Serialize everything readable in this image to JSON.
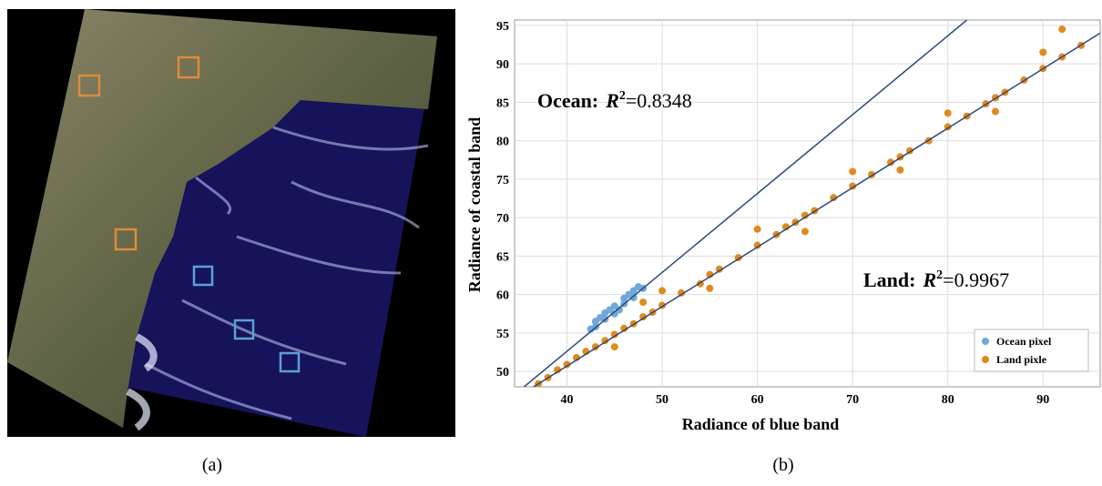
{
  "captions": [
    "(a)",
    "(b)"
  ],
  "chart_data": {
    "type": "scatter",
    "x_label": "Radiance of blue band",
    "y_label": "Radiance of coastal band",
    "xlim": [
      34.5,
      96
    ],
    "ylim": [
      48,
      95.7
    ],
    "xticks": [
      40,
      50,
      60,
      70,
      80,
      90
    ],
    "yticks": [
      50,
      55,
      60,
      65,
      70,
      75,
      80,
      85,
      90,
      95
    ],
    "grid": true,
    "legend": "lower right",
    "series": [
      {
        "name": "Ocean pixel",
        "color": "#6fa8dc",
        "x": [
          42.5,
          43,
          43.5,
          44,
          44.5,
          45,
          45.5,
          46,
          46.5,
          47,
          47.5,
          48,
          43,
          45,
          46,
          47,
          44
        ],
        "values": [
          55.5,
          56.5,
          57,
          56.8,
          58,
          58.5,
          58,
          59.5,
          60,
          60.5,
          61,
          60.8,
          55.8,
          57.5,
          58.8,
          59.6,
          57.6
        ]
      },
      {
        "name": "Land pixle",
        "color": "#e08a1e",
        "x": [
          37,
          38,
          39,
          40,
          41,
          42,
          43,
          44,
          45,
          46,
          47,
          48,
          49,
          50,
          52,
          54,
          55,
          56,
          58,
          60,
          62,
          63,
          64,
          65,
          66,
          68,
          70,
          72,
          74,
          75,
          76,
          78,
          80,
          82,
          84,
          85,
          86,
          88,
          90,
          92,
          94,
          50,
          55,
          60,
          65,
          70,
          75,
          80,
          85,
          90,
          92,
          48,
          45
        ],
        "values": [
          48.4,
          49.2,
          50.2,
          50.9,
          51.8,
          52.6,
          53.2,
          54,
          54.8,
          55.6,
          56.2,
          57.1,
          57.7,
          58.6,
          60.2,
          61.4,
          62.6,
          63.3,
          64.8,
          66.4,
          67.8,
          68.8,
          69.4,
          70.3,
          70.9,
          72.6,
          74.1,
          75.6,
          77.2,
          77.9,
          78.7,
          80,
          81.8,
          83.2,
          84.8,
          85.6,
          86.3,
          87.9,
          89.4,
          90.9,
          92.4,
          60.5,
          60.8,
          68.5,
          68.2,
          76,
          76.2,
          83.6,
          83.8,
          91.5,
          94.5,
          59,
          53.2
        ]
      }
    ],
    "fit_lines": [
      {
        "color": "#2c4a7a",
        "x": [
          35.5,
          82
        ],
        "values": [
          48,
          95.7
        ]
      },
      {
        "color": "#2c4a7a",
        "x": [
          36.5,
          96
        ],
        "values": [
          48,
          94
        ]
      }
    ],
    "annotations": [
      {
        "label": "Ocean:",
        "symbol": "R",
        "exponent": "2",
        "value_text": "=0.8348"
      },
      {
        "label": "Land:",
        "symbol": "R",
        "exponent": "2",
        "value_text": "=0.9967"
      }
    ]
  }
}
